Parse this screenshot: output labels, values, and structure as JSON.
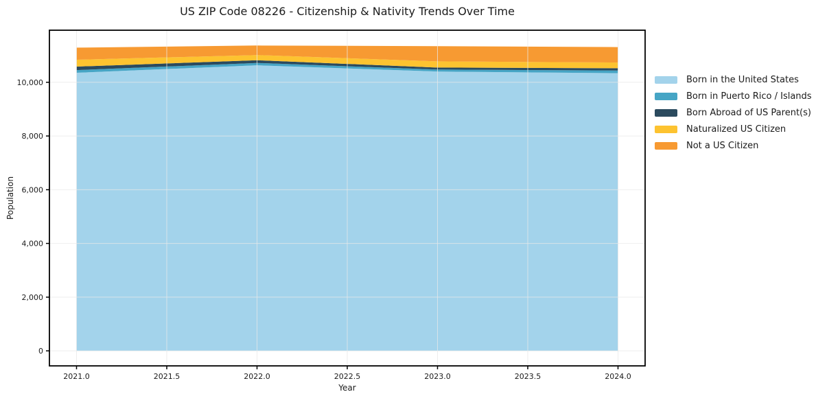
{
  "chart_data": {
    "type": "area",
    "stacked": true,
    "title": "US ZIP Code 08226 - Citizenship & Nativity Trends Over Time",
    "xlabel": "Year",
    "ylabel": "Population",
    "x": [
      2021,
      2022,
      2023,
      2024
    ],
    "series": [
      {
        "name": "Born in the United States",
        "color": "#a3d3eb",
        "values": [
          10355,
          10635,
          10400,
          10340
        ]
      },
      {
        "name": "Born in Puerto Rico / Islands",
        "color": "#46a5c5",
        "values": [
          100,
          85,
          75,
          100
        ]
      },
      {
        "name": "Born Abroad of US Parent(s)",
        "color": "#2b4a5e",
        "values": [
          130,
          100,
          75,
          85
        ]
      },
      {
        "name": "Naturalized US Citizen",
        "color": "#fdc330",
        "values": [
          255,
          195,
          230,
          210
        ]
      },
      {
        "name": "Not a US Citizen",
        "color": "#f79a32",
        "values": [
          450,
          355,
          565,
          575
        ]
      }
    ],
    "totals": [
      11290,
      11370,
      11345,
      11310
    ],
    "xlim": [
      2020.85,
      2024.15
    ],
    "ylim": [
      -560,
      11940
    ],
    "x_ticks": [
      {
        "v": 2021.0,
        "label": "2021.0"
      },
      {
        "v": 2021.5,
        "label": "2021.5"
      },
      {
        "v": 2022.0,
        "label": "2022.0"
      },
      {
        "v": 2022.5,
        "label": "2022.5"
      },
      {
        "v": 2023.0,
        "label": "2023.0"
      },
      {
        "v": 2023.5,
        "label": "2023.5"
      },
      {
        "v": 2024.0,
        "label": "2024.0"
      }
    ],
    "y_ticks": [
      {
        "v": 0,
        "label": "0"
      },
      {
        "v": 2000,
        "label": "2,000"
      },
      {
        "v": 4000,
        "label": "4,000"
      },
      {
        "v": 6000,
        "label": "6,000"
      },
      {
        "v": 8000,
        "label": "8,000"
      },
      {
        "v": 10000,
        "label": "10,000"
      }
    ],
    "grid": true,
    "grid_color": "#e8e8e8",
    "axis_color": "#000000",
    "legend_position": "right-outside"
  }
}
